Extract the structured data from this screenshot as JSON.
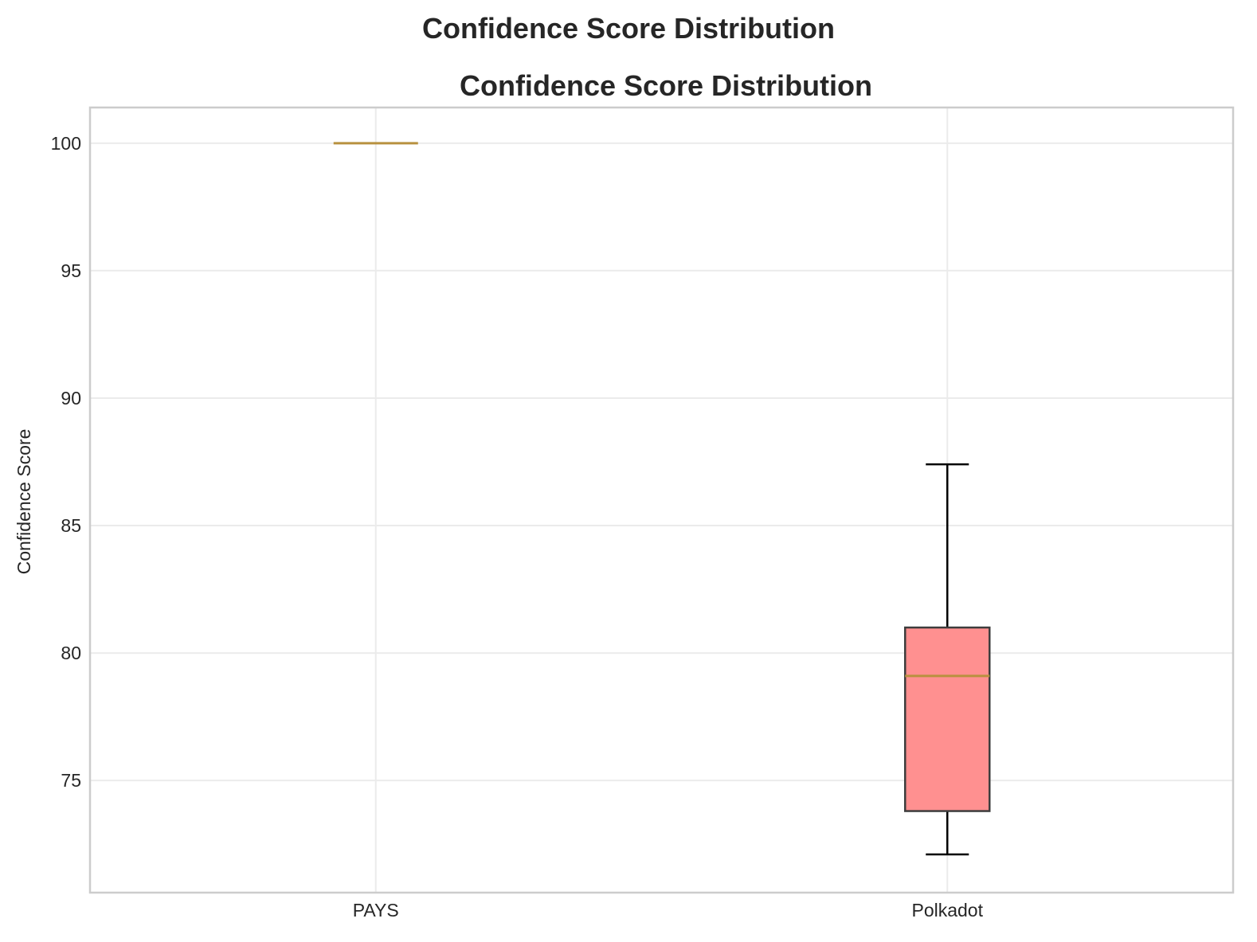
{
  "figure": {
    "suptitle": "Confidence Score Distribution"
  },
  "chart_data": {
    "type": "box",
    "title": "Confidence Score Distribution",
    "xlabel": "",
    "ylabel": "Confidence Score",
    "categories": [
      "PAYS",
      "Polkadot"
    ],
    "boxes": [
      {
        "category": "PAYS",
        "whisker_low": 100,
        "q1": 100,
        "median": 100,
        "q3": 100,
        "whisker_high": 100
      },
      {
        "category": "Polkadot",
        "whisker_low": 72.1,
        "q1": 73.8,
        "median": 79.1,
        "q3": 81.0,
        "whisker_high": 87.4
      }
    ],
    "ylim": [
      70.6,
      101.4
    ],
    "yticks": [
      75,
      80,
      85,
      90,
      95,
      100
    ],
    "grid": true,
    "colors": {
      "box_fill": "#ff9090",
      "box_edge": "#3d3d3d",
      "median": "#b8913f",
      "whisker": "#000000",
      "grid": "#ebebeb",
      "spine": "#cccccc"
    }
  }
}
